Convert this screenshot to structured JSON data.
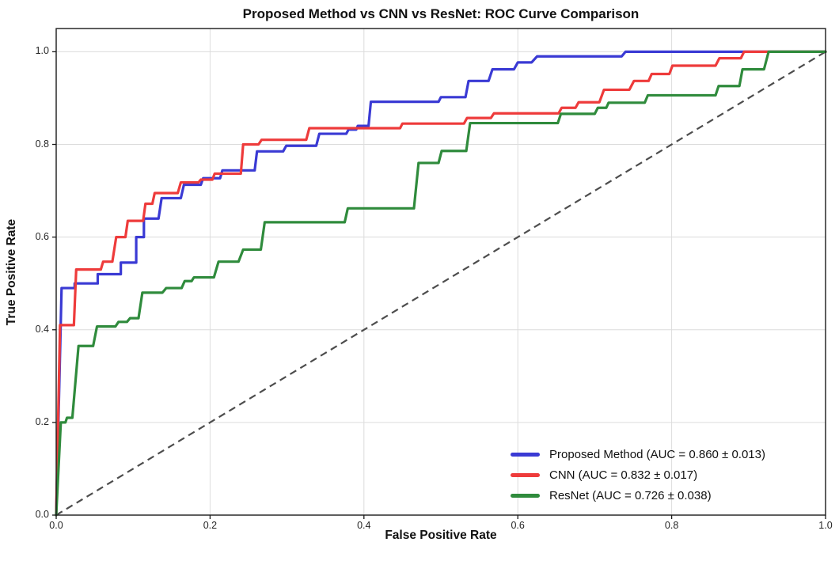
{
  "title": "Proposed Method vs CNN vs ResNet: ROC Curve Comparison",
  "axes": {
    "x_label": "False Positive Rate",
    "y_label": "True Positive Rate",
    "x_ticks": [
      "0.0",
      "0.2",
      "0.4",
      "0.6",
      "0.8",
      "1.0"
    ],
    "y_ticks": [
      "0.0",
      "0.2",
      "0.4",
      "0.6",
      "0.8",
      "1.0"
    ]
  },
  "legend": [
    {
      "label": "Proposed Method (AUC = 0.860 ± 0.013)",
      "color": "#3a3ad4"
    },
    {
      "label": "CNN (AUC = 0.832 ± 0.017)",
      "color": "#ee3b3b"
    },
    {
      "label": "ResNet (AUC = 0.726 ± 0.038)",
      "color": "#2f8b3c"
    }
  ],
  "colors": {
    "proposed": "#3a3ad4",
    "cnn": "#ee3b3b",
    "resnet": "#2f8b3c",
    "diagonal": "#4d4d4d",
    "grid": "#dcdcdc",
    "spine": "#1a1a1a"
  },
  "chart_data": {
    "type": "line",
    "title": "Proposed Method vs CNN vs ResNet: ROC Curve Comparison",
    "xlabel": "False Positive Rate",
    "ylabel": "True Positive Rate",
    "xlim": [
      0,
      1
    ],
    "ylim": [
      0,
      1.05
    ],
    "grid": true,
    "legend_position": "lower right",
    "x_tick_values": [
      0,
      0.2,
      0.4,
      0.6,
      0.8,
      1.0
    ],
    "y_tick_values": [
      0,
      0.2,
      0.4,
      0.6,
      0.8,
      1.0
    ],
    "diagonal": {
      "name": "chance",
      "style": "dashed",
      "points": [
        [
          0,
          0
        ],
        [
          1,
          1
        ]
      ]
    },
    "series": [
      {
        "name": "Proposed Method",
        "auc": 0.86,
        "auc_std": 0.013,
        "color": "#3a3ad4",
        "points": [
          [
            0,
            0
          ],
          [
            0.007,
            0.49
          ],
          [
            0.024,
            0.49
          ],
          [
            0.024,
            0.5
          ],
          [
            0.054,
            0.5
          ],
          [
            0.054,
            0.52
          ],
          [
            0.084,
            0.52
          ],
          [
            0.084,
            0.545
          ],
          [
            0.104,
            0.545
          ],
          [
            0.104,
            0.6
          ],
          [
            0.114,
            0.6
          ],
          [
            0.114,
            0.64
          ],
          [
            0.133,
            0.64
          ],
          [
            0.137,
            0.684
          ],
          [
            0.162,
            0.684
          ],
          [
            0.166,
            0.713
          ],
          [
            0.188,
            0.713
          ],
          [
            0.191,
            0.727
          ],
          [
            0.213,
            0.727
          ],
          [
            0.216,
            0.744
          ],
          [
            0.258,
            0.744
          ],
          [
            0.261,
            0.785
          ],
          [
            0.295,
            0.785
          ],
          [
            0.299,
            0.797
          ],
          [
            0.338,
            0.797
          ],
          [
            0.342,
            0.823
          ],
          [
            0.377,
            0.823
          ],
          [
            0.38,
            0.832
          ],
          [
            0.39,
            0.832
          ],
          [
            0.392,
            0.84
          ],
          [
            0.406,
            0.84
          ],
          [
            0.409,
            0.892
          ],
          [
            0.497,
            0.892
          ],
          [
            0.5,
            0.902
          ],
          [
            0.532,
            0.902
          ],
          [
            0.536,
            0.937
          ],
          [
            0.562,
            0.937
          ],
          [
            0.567,
            0.962
          ],
          [
            0.595,
            0.962
          ],
          [
            0.6,
            0.977
          ],
          [
            0.618,
            0.977
          ],
          [
            0.625,
            0.99
          ],
          [
            0.735,
            0.99
          ],
          [
            0.74,
            1
          ],
          [
            1,
            1
          ]
        ]
      },
      {
        "name": "CNN",
        "auc": 0.832,
        "auc_std": 0.017,
        "color": "#ee3b3b",
        "points": [
          [
            0,
            0
          ],
          [
            0.005,
            0.41
          ],
          [
            0.023,
            0.41
          ],
          [
            0.026,
            0.53
          ],
          [
            0.058,
            0.53
          ],
          [
            0.061,
            0.547
          ],
          [
            0.073,
            0.547
          ],
          [
            0.078,
            0.6
          ],
          [
            0.09,
            0.6
          ],
          [
            0.093,
            0.635
          ],
          [
            0.113,
            0.635
          ],
          [
            0.116,
            0.672
          ],
          [
            0.125,
            0.672
          ],
          [
            0.128,
            0.695
          ],
          [
            0.158,
            0.695
          ],
          [
            0.162,
            0.718
          ],
          [
            0.185,
            0.718
          ],
          [
            0.188,
            0.724
          ],
          [
            0.203,
            0.724
          ],
          [
            0.206,
            0.737
          ],
          [
            0.24,
            0.737
          ],
          [
            0.243,
            0.8
          ],
          [
            0.263,
            0.8
          ],
          [
            0.267,
            0.81
          ],
          [
            0.325,
            0.81
          ],
          [
            0.329,
            0.835
          ],
          [
            0.447,
            0.835
          ],
          [
            0.45,
            0.845
          ],
          [
            0.53,
            0.845
          ],
          [
            0.534,
            0.857
          ],
          [
            0.565,
            0.857
          ],
          [
            0.569,
            0.867
          ],
          [
            0.653,
            0.867
          ],
          [
            0.657,
            0.879
          ],
          [
            0.675,
            0.879
          ],
          [
            0.679,
            0.891
          ],
          [
            0.706,
            0.891
          ],
          [
            0.712,
            0.918
          ],
          [
            0.745,
            0.918
          ],
          [
            0.751,
            0.937
          ],
          [
            0.77,
            0.937
          ],
          [
            0.774,
            0.952
          ],
          [
            0.797,
            0.952
          ],
          [
            0.801,
            0.97
          ],
          [
            0.857,
            0.97
          ],
          [
            0.862,
            0.986
          ],
          [
            0.89,
            0.986
          ],
          [
            0.894,
            1
          ],
          [
            1,
            1
          ]
        ]
      },
      {
        "name": "ResNet",
        "auc": 0.726,
        "auc_std": 0.038,
        "color": "#2f8b3c",
        "points": [
          [
            0,
            0
          ],
          [
            0.006,
            0.2
          ],
          [
            0.012,
            0.2
          ],
          [
            0.014,
            0.21
          ],
          [
            0.021,
            0.21
          ],
          [
            0.029,
            0.365
          ],
          [
            0.048,
            0.365
          ],
          [
            0.053,
            0.407
          ],
          [
            0.077,
            0.407
          ],
          [
            0.081,
            0.417
          ],
          [
            0.092,
            0.417
          ],
          [
            0.096,
            0.425
          ],
          [
            0.107,
            0.425
          ],
          [
            0.112,
            0.48
          ],
          [
            0.138,
            0.48
          ],
          [
            0.143,
            0.49
          ],
          [
            0.163,
            0.49
          ],
          [
            0.167,
            0.505
          ],
          [
            0.176,
            0.505
          ],
          [
            0.179,
            0.513
          ],
          [
            0.205,
            0.513
          ],
          [
            0.211,
            0.547
          ],
          [
            0.237,
            0.547
          ],
          [
            0.243,
            0.573
          ],
          [
            0.266,
            0.573
          ],
          [
            0.271,
            0.632
          ],
          [
            0.375,
            0.632
          ],
          [
            0.379,
            0.662
          ],
          [
            0.465,
            0.662
          ],
          [
            0.471,
            0.76
          ],
          [
            0.497,
            0.76
          ],
          [
            0.501,
            0.786
          ],
          [
            0.533,
            0.786
          ],
          [
            0.538,
            0.846
          ],
          [
            0.652,
            0.846
          ],
          [
            0.656,
            0.866
          ],
          [
            0.7,
            0.866
          ],
          [
            0.704,
            0.879
          ],
          [
            0.715,
            0.879
          ],
          [
            0.718,
            0.89
          ],
          [
            0.765,
            0.89
          ],
          [
            0.769,
            0.906
          ],
          [
            0.857,
            0.906
          ],
          [
            0.861,
            0.926
          ],
          [
            0.888,
            0.926
          ],
          [
            0.892,
            0.962
          ],
          [
            0.92,
            0.962
          ],
          [
            0.926,
            1
          ],
          [
            1,
            1
          ]
        ]
      }
    ]
  }
}
